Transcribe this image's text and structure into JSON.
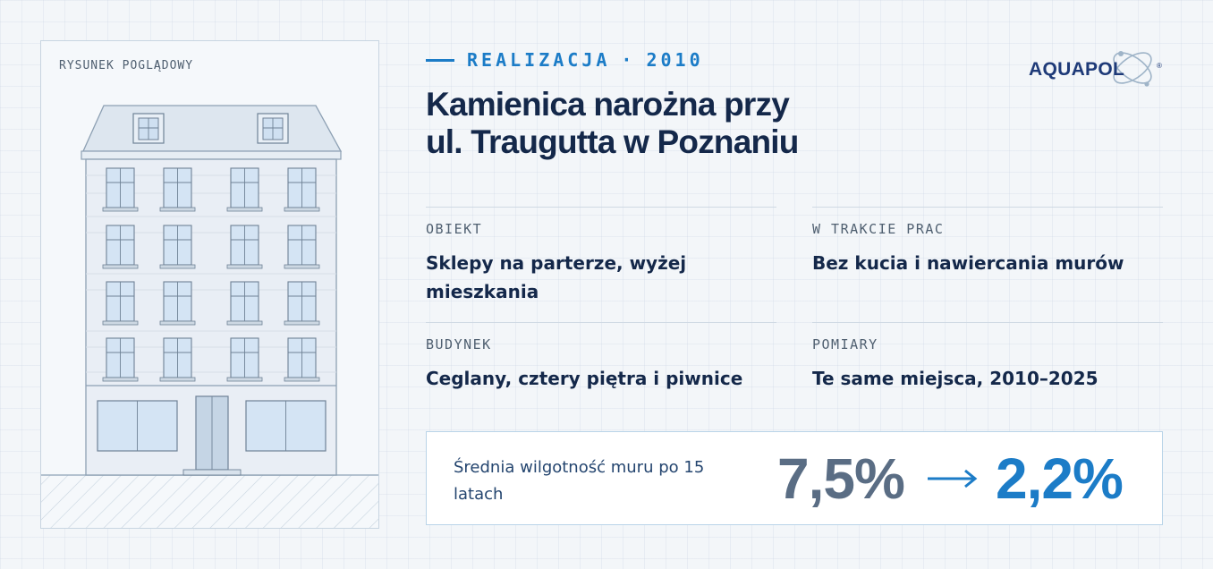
{
  "drawing": {
    "label": "RYSUNEK POGLĄDOWY",
    "icon": "building-illustration"
  },
  "header": {
    "kicker_label": "REALIZACJA",
    "kicker_separator": "·",
    "kicker_year": "2010",
    "title_line1": "Kamienica narożna przy",
    "title_line2": "ul. Traugutta w Poznaniu"
  },
  "logo": {
    "text": "AQUAPOL",
    "registered": "®",
    "colors": {
      "text": "#1e3a78",
      "accent": "#9fb4c8"
    }
  },
  "info": [
    {
      "label": "OBIEKT",
      "value": "Sklepy na parterze, wyżej mieszkania"
    },
    {
      "label": "W TRAKCIE PRAC",
      "value": "Bez kucia i nawiercania murów"
    },
    {
      "label": "BUDYNEK",
      "value": "Ceglany, cztery piętra i piwnice"
    },
    {
      "label": "POMIARY",
      "value": "Te same miejsca, 2010–2025"
    }
  ],
  "stat": {
    "label": "Średnia wilgotność muru po 15 latach",
    "before": "7,5%",
    "after": "2,2%",
    "arrow_icon": "arrow-right-icon"
  },
  "colors": {
    "accent": "#1c7cc7",
    "navy": "#14284a",
    "muted": "#5a6d84"
  }
}
